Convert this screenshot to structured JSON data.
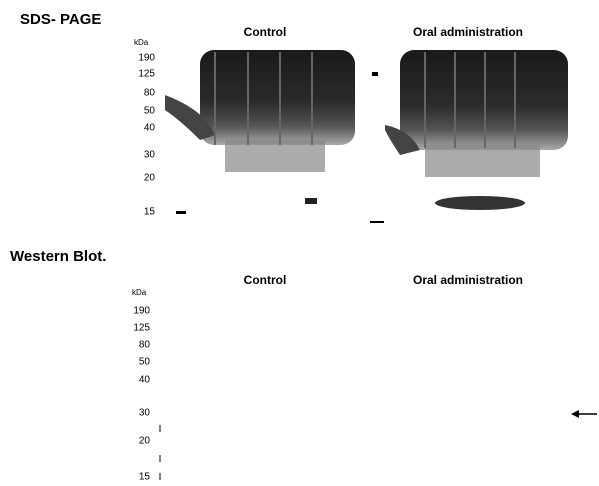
{
  "panels": [
    {
      "title": "SDS- PAGE",
      "lanes": [
        "Control",
        "Oral administration"
      ],
      "unit": "kDa",
      "markers": [
        "190",
        "125",
        "80",
        "50",
        "40",
        "30",
        "20",
        "15"
      ]
    },
    {
      "title": "Western Blot.",
      "lanes": [
        "Control",
        "Oral administration"
      ],
      "unit": "kDa",
      "markers": [
        "190",
        "125",
        "80",
        "50",
        "40",
        "30",
        "20",
        "15"
      ]
    }
  ]
}
